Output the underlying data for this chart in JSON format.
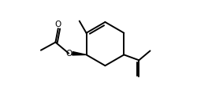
{
  "bg_color": "#ffffff",
  "line_color": "#000000",
  "line_width": 1.4,
  "fig_width": 2.5,
  "fig_height": 1.28,
  "dpi": 100,
  "O_label": "O",
  "O_fontsize": 7.5,
  "xlim": [
    -0.5,
    5.2
  ],
  "ylim": [
    -2.0,
    1.8
  ]
}
